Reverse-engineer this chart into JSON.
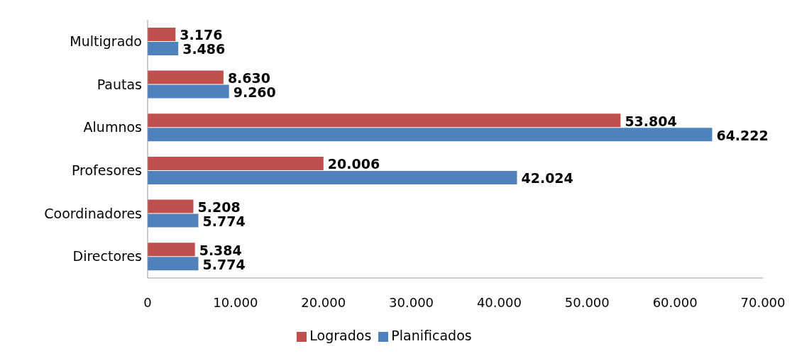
{
  "chart_data": {
    "type": "bar",
    "orientation": "horizontal",
    "categories": [
      "Multigrado",
      "Pautas",
      "Alumnos",
      "Profesores",
      "Coordinadores",
      "Directores"
    ],
    "series": [
      {
        "name": "Logrados",
        "color": "#c0504d",
        "values": [
          3176,
          8630,
          53804,
          20006,
          5208,
          5384
        ],
        "value_labels": [
          "3.176",
          "8.630",
          "53.804",
          "20.006",
          "5.208",
          "5.384"
        ]
      },
      {
        "name": "Planificados",
        "color": "#4f81bd",
        "values": [
          3486,
          9260,
          64222,
          42024,
          5774,
          5774
        ],
        "value_labels": [
          "3.486",
          "9.260",
          "64.222",
          "42.024",
          "5.774",
          "5.774"
        ]
      }
    ],
    "xlim": [
      0,
      70000
    ],
    "xticks": [
      0,
      {
        "value": 10000,
        "label": "10.000"
      },
      {
        "value": 20000,
        "label": "20.000"
      },
      {
        "value": 30000,
        "label": "30.000"
      },
      {
        "value": 40000,
        "label": "40.000"
      },
      {
        "value": 50000,
        "label": "50.000"
      },
      {
        "value": 60000,
        "label": "60.000"
      },
      {
        "value": 70000,
        "label": "70.000"
      }
    ],
    "grid": false,
    "legend": "bottom"
  }
}
